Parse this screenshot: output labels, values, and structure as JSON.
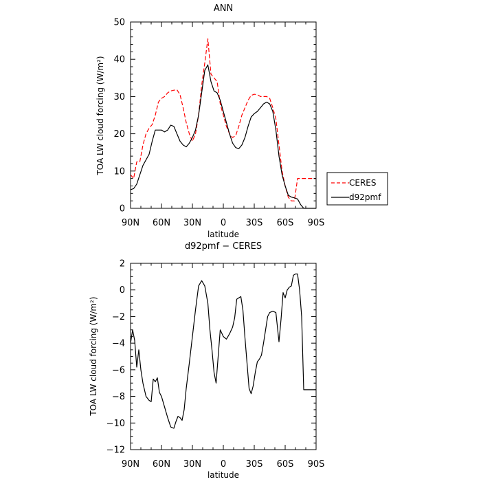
{
  "chart_data": [
    {
      "type": "line",
      "title": "ANN",
      "xlabel": "latitude",
      "ylabel": "TOA LW cloud forcing (W/m²)",
      "x_ticks": [
        "90N",
        "60N",
        "30N",
        "0",
        "30S",
        "60S",
        "90S"
      ],
      "x_range": [
        90,
        -90
      ],
      "ylim": [
        0,
        50
      ],
      "y_ticks": [
        "0",
        "10",
        "20",
        "30",
        "40",
        "50"
      ],
      "grid": false,
      "legend_position": "right-outside",
      "series": [
        {
          "name": "CERES",
          "color": "#ff0000",
          "dash": "dashed",
          "x": [
            90,
            87,
            84,
            81,
            78,
            75,
            72,
            69,
            66,
            63,
            60,
            57,
            54,
            51,
            48,
            45,
            42,
            39,
            36,
            33,
            30,
            27,
            24,
            21,
            18,
            15,
            12,
            9,
            6,
            3,
            0,
            -3,
            -6,
            -9,
            -12,
            -15,
            -18,
            -21,
            -24,
            -27,
            -30,
            -33,
            -36,
            -39,
            -42,
            -45,
            -48,
            -51,
            -54,
            -57,
            -60,
            -63,
            -66,
            -69,
            -72,
            -75,
            -78,
            -81,
            -84,
            -87,
            -90
          ],
          "y": [
            9,
            8,
            12.5,
            12.5,
            17,
            20,
            21.5,
            22.5,
            25,
            28.5,
            29.5,
            30,
            31,
            31.5,
            31.7,
            31.8,
            30.5,
            27,
            23,
            20,
            18,
            20,
            25,
            33,
            39,
            45.5,
            36,
            35,
            34,
            28,
            25,
            22,
            20,
            19,
            19.5,
            22,
            25,
            27,
            29,
            30.3,
            30.6,
            30.5,
            30,
            30,
            30,
            29.5,
            27,
            24,
            17,
            10,
            6,
            3,
            2,
            2,
            8,
            8,
            8,
            8,
            8,
            8,
            8
          ]
        },
        {
          "name": "d92pmf",
          "color": "#000000",
          "dash": "solid",
          "x": [
            90,
            87,
            84,
            81,
            78,
            75,
            72,
            69,
            66,
            63,
            60,
            57,
            54,
            51,
            48,
            45,
            42,
            39,
            36,
            33,
            30,
            27,
            24,
            21,
            18,
            15,
            12,
            9,
            6,
            3,
            0,
            -3,
            -6,
            -9,
            -12,
            -15,
            -18,
            -21,
            -24,
            -27,
            -30,
            -33,
            -36,
            -39,
            -42,
            -45,
            -48,
            -51,
            -54,
            -57,
            -60,
            -63,
            -66,
            -69,
            -72,
            -75,
            -78,
            -81,
            -84,
            -87,
            -90
          ],
          "y": [
            5,
            5.3,
            6.5,
            9,
            11.5,
            13,
            14.5,
            18,
            21,
            21,
            21,
            20.5,
            21,
            22.3,
            22,
            20,
            18,
            17,
            16.5,
            17.5,
            19,
            21,
            25,
            31,
            37,
            38.5,
            34,
            31.5,
            31,
            29,
            26,
            23,
            20,
            17.5,
            16.3,
            16,
            17,
            19,
            22,
            24.5,
            25.4,
            26,
            27,
            28,
            28.5,
            28,
            26,
            21,
            14,
            9,
            6,
            3.5,
            3,
            2.8,
            2.5,
            1,
            0,
            0,
            0,
            0,
            0
          ]
        }
      ]
    },
    {
      "type": "line",
      "title": "d92pmf − CERES",
      "xlabel": "latitude",
      "ylabel": "TOA LW cloud forcing (W/m²)",
      "x_ticks": [
        "90N",
        "60N",
        "30N",
        "0",
        "30S",
        "60S",
        "90S"
      ],
      "x_range": [
        90,
        -90
      ],
      "ylim": [
        -12,
        2
      ],
      "y_ticks": [
        "−12",
        "−10",
        "−8",
        "−6",
        "−4",
        "−2",
        "0",
        "2"
      ],
      "grid": false,
      "series": [
        {
          "color": "#000000",
          "dash": "solid",
          "x": [
            90,
            88,
            86,
            84,
            82,
            80,
            78,
            75,
            72,
            70,
            68,
            66,
            64,
            62,
            60,
            57,
            54,
            51,
            48,
            46,
            44,
            42,
            40,
            38,
            36,
            33,
            30,
            27,
            24,
            21,
            18,
            15,
            13,
            11,
            9,
            7,
            5,
            3,
            0,
            -3,
            -6,
            -9,
            -11,
            -13,
            -15,
            -17,
            -19,
            -21,
            -23,
            -25,
            -27,
            -29,
            -31,
            -33,
            -35,
            -37,
            -39,
            -41,
            -43,
            -45,
            -48,
            -51,
            -54,
            -56,
            -58,
            -60,
            -62,
            -64,
            -66,
            -68,
            -70,
            -72,
            -74,
            -76,
            -78,
            -80,
            -82,
            -84,
            -86,
            -88,
            -90
          ],
          "y": [
            -4,
            -3,
            -3.8,
            -5.8,
            -4.5,
            -6,
            -7,
            -8,
            -8.3,
            -8.4,
            -6.7,
            -6.9,
            -6.6,
            -7.7,
            -8,
            -8.8,
            -9.6,
            -10.3,
            -10.4,
            -9.9,
            -9.5,
            -9.6,
            -9.8,
            -9,
            -7.4,
            -5.5,
            -3.5,
            -1.5,
            0.3,
            0.7,
            0.3,
            -1,
            -3,
            -4.5,
            -6.2,
            -7,
            -5,
            -3,
            -3.5,
            -3.7,
            -3.3,
            -2.8,
            -2.1,
            -0.7,
            -0.6,
            -0.5,
            -1.5,
            -3.6,
            -5.5,
            -7.4,
            -7.8,
            -7.2,
            -6.2,
            -5.4,
            -5.2,
            -4.9,
            -4,
            -3,
            -2,
            -1.7,
            -1.6,
            -1.7,
            -3.9,
            -2.2,
            -0.2,
            -0.6,
            0,
            0.2,
            0.3,
            1.1,
            1.2,
            1.2,
            0,
            -2,
            -7.5,
            -7.5,
            -7.5,
            -7.5,
            -7.5,
            -7.5,
            -7.5
          ]
        }
      ]
    }
  ]
}
